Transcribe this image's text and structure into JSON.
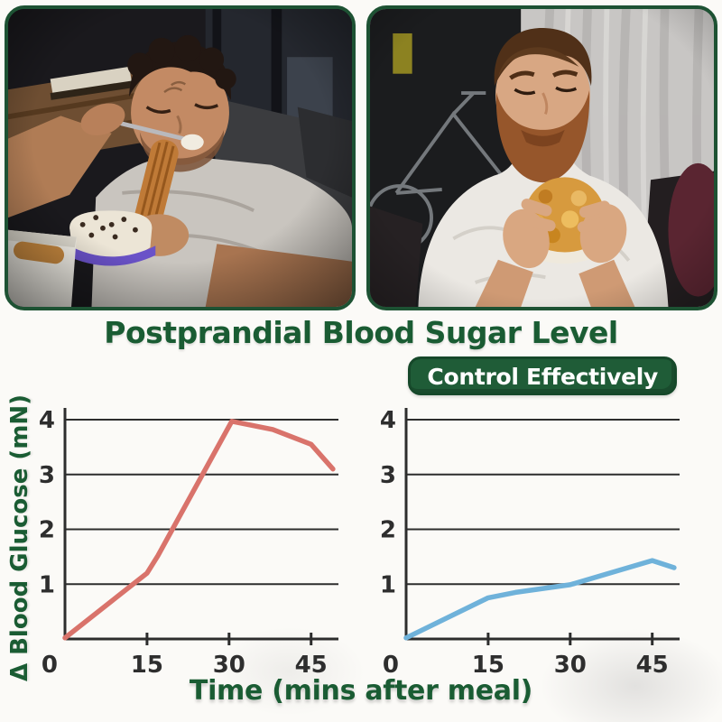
{
  "theme": {
    "green": "#1a5c33",
    "frame_border": "#1d5233",
    "badge_bg": "#1f5c37",
    "badge_border": "#16482a",
    "background": "#fbfaf7",
    "red_line": "#d9736b",
    "blue_line": "#6fb2da",
    "grid": "#2d2d2d",
    "tick_text": "#2e2e2e"
  },
  "header": {
    "title": "Postprandial Blood Sugar Level",
    "badge_label": "Control Effectively"
  },
  "photos": {
    "left_alt": "man lying on couch eating cream cake and churros",
    "right_alt": "bearded man in white t-shirt eating fried burger"
  },
  "axes": {
    "ylabel": "Δ Blood Glucose (mN)",
    "xlabel": "Time (mins after meal)"
  },
  "chart_data": [
    {
      "type": "line",
      "name": "without-control",
      "line_color": "#d9736b",
      "grid_color": "#2d2d2d",
      "tick_color": "#2e2e2e",
      "xlim": [
        0,
        50
      ],
      "ylim": [
        0,
        4
      ],
      "xticks": [
        15,
        30,
        45
      ],
      "yticks": [
        0,
        1,
        2,
        3,
        4
      ],
      "grid": true,
      "points": [
        [
          0,
          0.02
        ],
        [
          15,
          1.2
        ],
        [
          17,
          1.52
        ],
        [
          30.5,
          3.97
        ],
        [
          38,
          3.82
        ],
        [
          45,
          3.55
        ],
        [
          49,
          3.1
        ]
      ]
    },
    {
      "type": "line",
      "name": "control-effectively",
      "line_color": "#6fb2da",
      "grid_color": "#2d2d2d",
      "tick_color": "#2e2e2e",
      "xlim": [
        0,
        50
      ],
      "ylim": [
        0,
        4
      ],
      "xticks": [
        15,
        30,
        45
      ],
      "yticks": [
        0,
        1,
        2,
        3,
        4
      ],
      "grid": true,
      "points": [
        [
          0,
          0.02
        ],
        [
          15,
          0.75
        ],
        [
          20,
          0.85
        ],
        [
          30,
          0.99
        ],
        [
          45,
          1.43
        ],
        [
          49,
          1.3
        ]
      ]
    }
  ]
}
